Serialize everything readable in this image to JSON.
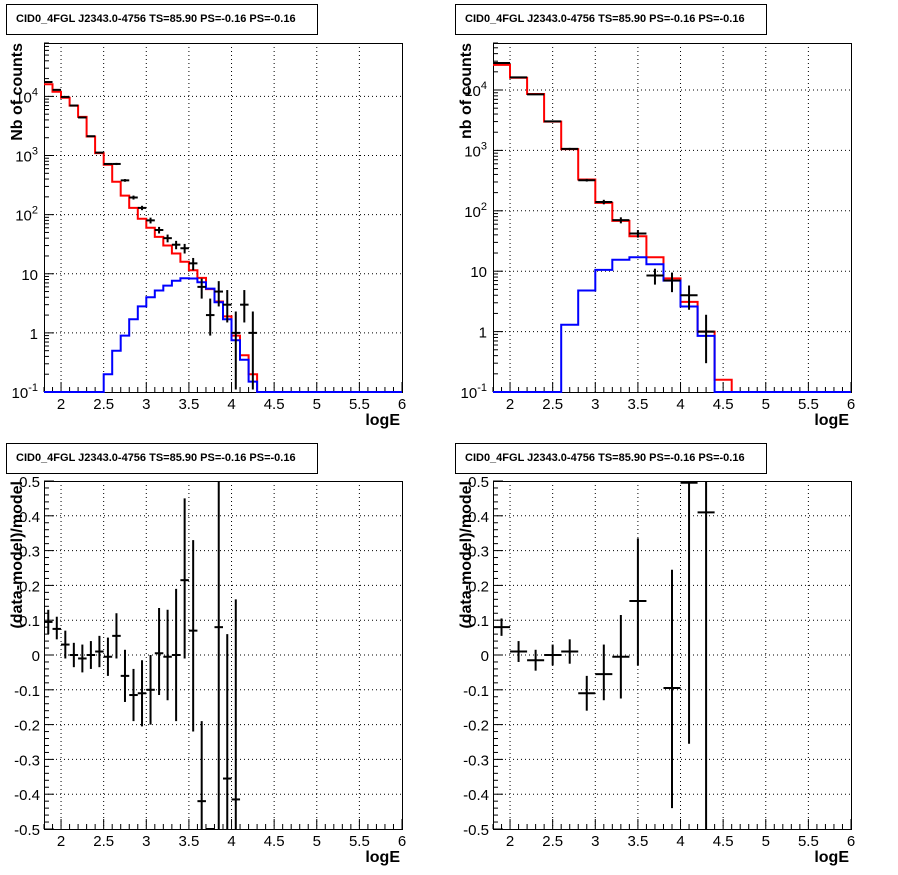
{
  "panels": [
    {
      "id": "top-left",
      "title": "CID0_4FGL J2343.0-4756 TS=85.90 PS=-0.16 PS=-0.16",
      "chart_data": {
        "type": "histogram",
        "xlabel": "logE",
        "ylabel": "Nb of counts",
        "xlim": [
          1.8,
          6.0
        ],
        "ylim": [
          0.1,
          80000
        ],
        "yscale": "log",
        "grid": true,
        "xticks": [
          "2",
          "2.5",
          "3",
          "3.5",
          "4",
          "4.5",
          "5",
          "5.5",
          "6"
        ],
        "yticks": [
          {
            "v": 0.1,
            "base": "10",
            "exp": "-1"
          },
          {
            "v": 1,
            "base": "1",
            "exp": ""
          },
          {
            "v": 10,
            "base": "10",
            "exp": ""
          },
          {
            "v": 100,
            "base": "10",
            "exp": "2"
          },
          {
            "v": 1000,
            "base": "10",
            "exp": "3"
          },
          {
            "v": 10000,
            "base": "10",
            "exp": "4"
          }
        ],
        "bin_edges": [
          1.8,
          1.9,
          2.0,
          2.1,
          2.2,
          2.3,
          2.4,
          2.5,
          2.6,
          2.7,
          2.8,
          2.9,
          3.0,
          3.1,
          3.2,
          3.3,
          3.4,
          3.5,
          3.6,
          3.7,
          3.8,
          3.9,
          4.0,
          4.1,
          4.2,
          4.3,
          4.4,
          4.5,
          4.6,
          4.7,
          4.8,
          4.9,
          5.0,
          5.1,
          5.2,
          5.3,
          5.4,
          5.5,
          5.6,
          5.7,
          5.8,
          5.9,
          6.0
        ],
        "series": [
          {
            "name": "",
            "color": "#ff0000",
            "style": "step",
            "values": [
              16000,
              12000,
              9500,
              7000,
              4500,
              2100,
              1100,
              700,
              360,
              210,
              130,
              85,
              60,
              42,
              30,
              22,
              16,
              11.5,
              8.5,
              5.5,
              3.4,
              1.9,
              0.9,
              0.42,
              0.2,
              0.1,
              0.1,
              0.1,
              0.1,
              0.1,
              0.1,
              0.1,
              0.1,
              0.1,
              0.1,
              0.1,
              0.1,
              0.1,
              0.1,
              0.1,
              0.1,
              0.1
            ]
          },
          {
            "name": "",
            "color": "#0000ff",
            "style": "step",
            "values": [
              0.1,
              0.1,
              0.1,
              0.1,
              0.1,
              0.1,
              0.1,
              0.2,
              0.5,
              0.9,
              1.7,
              2.8,
              4.0,
              5.2,
              6.3,
              7.6,
              8.4,
              8.3,
              7.2,
              5.6,
              3.3,
              1.7,
              0.75,
              0.35,
              0.15,
              0.1,
              0.1,
              0.1,
              0.1,
              0.1,
              0.1,
              0.1,
              0.1,
              0.1,
              0.1,
              0.1,
              0.1,
              0.1,
              0.1,
              0.1,
              0.1,
              0.1
            ]
          },
          {
            "name": "",
            "color": "#000000",
            "style": "points",
            "x": [
              1.85,
              1.95,
              2.05,
              2.15,
              2.25,
              2.35,
              2.45,
              2.55,
              2.65,
              2.75,
              2.85,
              2.95,
              3.05,
              3.15,
              3.25,
              3.35,
              3.45,
              3.55,
              3.65,
              3.75,
              3.85,
              3.95,
              4.05,
              4.15,
              4.25
            ],
            "y": [
              17500,
              12900,
              9800,
              7000,
              4400,
              2120,
              1120,
              720,
              720,
              380,
              195,
              130,
              80,
              55,
              40,
              31,
              27,
              15,
              6,
              2,
              5,
              3,
              1,
              3,
              1
            ],
            "lo": [
              17300,
              12750,
              9650,
              6900,
              4330,
              2070,
              1090,
              700,
              690,
              360,
              180,
              119,
              71,
              48,
              34,
              26,
              22,
              11.5,
              3.8,
              0.9,
              2.8,
              1.5,
              0.11,
              1.5,
              0.11
            ],
            "hi": [
              17750,
              13100,
              10000,
              7100,
              4470,
              2170,
              1150,
              740,
              750,
              400,
              210,
              141,
              89,
              62,
              46,
              36,
              32,
              18.5,
              8.3,
              3.8,
              7.5,
              5.3,
              2.3,
              5.3,
              2.3
            ]
          }
        ]
      }
    },
    {
      "id": "top-right",
      "title": "CID0_4FGL J2343.0-4756 TS=85.90 PS=-0.16 PS=-0.16",
      "chart_data": {
        "type": "histogram",
        "xlabel": "logE",
        "ylabel": "nb of counts",
        "xlim": [
          1.8,
          6.0
        ],
        "ylim": [
          0.1,
          60000
        ],
        "yscale": "log",
        "grid": true,
        "xticks": [
          "2",
          "2.5",
          "3",
          "3.5",
          "4",
          "4.5",
          "5",
          "5.5",
          "6"
        ],
        "yticks": [
          {
            "v": 0.1,
            "base": "10",
            "exp": "-1"
          },
          {
            "v": 1,
            "base": "1",
            "exp": ""
          },
          {
            "v": 10,
            "base": "10",
            "exp": ""
          },
          {
            "v": 100,
            "base": "10",
            "exp": "2"
          },
          {
            "v": 1000,
            "base": "10",
            "exp": "3"
          },
          {
            "v": 10000,
            "base": "10",
            "exp": "4"
          }
        ],
        "bin_edges": [
          1.8,
          2.0,
          2.2,
          2.4,
          2.6,
          2.8,
          3.0,
          3.2,
          3.4,
          3.6,
          3.8,
          4.0,
          4.2,
          4.4,
          4.6,
          4.8,
          5.0,
          5.2,
          5.4,
          5.6,
          5.8,
          6.0
        ],
        "series": [
          {
            "name": "",
            "color": "#ff0000",
            "style": "step",
            "values": [
              26000,
              16000,
              8600,
              3000,
              1050,
              330,
              135,
              68,
              38,
              17,
              7.6,
              3.1,
              1.0,
              0.16,
              0.1,
              0.1,
              0.1,
              0.1,
              0.1,
              0.1,
              0.1
            ]
          },
          {
            "name": "",
            "color": "#0000ff",
            "style": "step",
            "values": [
              0.1,
              0.1,
              0.1,
              0.1,
              1.3,
              4.8,
              10.5,
              15.5,
              17.0,
              13.0,
              7.0,
              2.6,
              0.85,
              0.1,
              0.1,
              0.1,
              0.1,
              0.1,
              0.1,
              0.1,
              0.1
            ]
          },
          {
            "name": "",
            "color": "#000000",
            "style": "points",
            "x": [
              1.9,
              2.1,
              2.3,
              2.5,
              2.7,
              2.9,
              3.1,
              3.3,
              3.5,
              3.7,
              3.9,
              4.1,
              4.3
            ],
            "y": [
              28000,
              16200,
              8450,
              3020,
              1060,
              320,
              140,
              70,
              42,
              8.5,
              7,
              4,
              1
            ],
            "lo": [
              27700,
              15900,
              8300,
              2950,
              1020,
              305,
              128,
              62,
              36,
              6,
              4.5,
              2.3,
              0.3
            ],
            "hi": [
              28300,
              16500,
              8600,
              3090,
              1100,
              337,
              152,
              78,
              48,
              11,
              9.5,
              5.8,
              1.9
            ]
          }
        ]
      }
    },
    {
      "id": "bottom-left",
      "title": "CID0_4FGL J2343.0-4756 TS=85.90 PS=-0.16 PS=-0.16",
      "chart_data": {
        "type": "scatter",
        "xlabel": "logE",
        "ylabel": "(data-model)/model",
        "xlim": [
          1.8,
          6.0
        ],
        "ylim": [
          -0.5,
          0.5
        ],
        "yscale": "linear",
        "grid": true,
        "xticks": [
          "2",
          "2.5",
          "3",
          "3.5",
          "4",
          "4.5",
          "5",
          "5.5",
          "6"
        ],
        "yticks_lin": [
          "-0.5",
          "-0.4",
          "-0.3",
          "-0.2",
          "-0.1",
          "0",
          "0.1",
          "0.2",
          "0.3",
          "0.4",
          "0.5"
        ],
        "series": [
          {
            "name": "",
            "color": "#000000",
            "style": "points",
            "xhalf": 0.05,
            "x": [
              1.85,
              1.95,
              2.05,
              2.15,
              2.25,
              2.35,
              2.45,
              2.55,
              2.65,
              2.75,
              2.85,
              2.95,
              3.05,
              3.15,
              3.25,
              3.35,
              3.45,
              3.55,
              3.65,
              3.75,
              3.85,
              3.95,
              4.05
            ],
            "y": [
              0.095,
              0.075,
              0.03,
              0.0,
              -0.01,
              0.0,
              0.01,
              -0.005,
              0.055,
              -0.06,
              -0.115,
              -0.11,
              -0.1,
              0.005,
              -0.005,
              0.0,
              0.215,
              0.07,
              -0.42,
              -0.5,
              0.08,
              -0.355,
              -0.415
            ],
            "lo": [
              0.06,
              0.045,
              -0.01,
              -0.035,
              -0.05,
              -0.04,
              -0.035,
              -0.06,
              -0.01,
              -0.135,
              -0.19,
              -0.205,
              -0.2,
              -0.115,
              -0.13,
              -0.19,
              -0.01,
              -0.22,
              -0.5,
              -0.5,
              -0.5,
              -0.5,
              -0.5
            ],
            "hi": [
              0.13,
              0.11,
              0.07,
              0.035,
              0.03,
              0.04,
              0.055,
              0.05,
              0.12,
              0.015,
              -0.04,
              -0.015,
              0.0,
              0.135,
              0.13,
              0.19,
              0.45,
              0.33,
              -0.19,
              -0.5,
              0.5,
              0.06,
              0.16
            ]
          }
        ]
      }
    },
    {
      "id": "bottom-right",
      "title": "CID0_4FGL J2343.0-4756 TS=85.90 PS=-0.16 PS=-0.16",
      "chart_data": {
        "type": "scatter",
        "xlabel": "logE",
        "ylabel": "(data-model)/model",
        "xlim": [
          1.8,
          6.0
        ],
        "ylim": [
          -0.5,
          0.5
        ],
        "yscale": "linear",
        "grid": true,
        "xticks": [
          "2",
          "2.5",
          "3",
          "3.5",
          "4",
          "4.5",
          "5",
          "5.5",
          "6"
        ],
        "yticks_lin": [
          "-0.5",
          "-0.4",
          "-0.3",
          "-0.2",
          "-0.1",
          "0",
          "0.1",
          "0.2",
          "0.3",
          "0.4",
          "0.5"
        ],
        "series": [
          {
            "name": "",
            "color": "#000000",
            "style": "points",
            "xhalf": 0.1,
            "x": [
              1.9,
              2.1,
              2.3,
              2.5,
              2.7,
              2.9,
              3.1,
              3.3,
              3.5,
              3.9,
              4.1,
              4.3
            ],
            "y": [
              0.08,
              0.01,
              -0.015,
              0.0,
              0.01,
              -0.11,
              -0.055,
              -0.005,
              0.155,
              -0.095,
              0.495,
              0.41
            ],
            "lo": [
              0.055,
              -0.02,
              -0.045,
              -0.03,
              -0.025,
              -0.16,
              -0.13,
              -0.125,
              -0.03,
              -0.44,
              -0.255,
              -0.5
            ],
            "hi": [
              0.105,
              0.04,
              0.015,
              0.03,
              0.045,
              -0.06,
              0.03,
              0.115,
              0.335,
              0.245,
              0.5,
              0.5
            ]
          }
        ]
      }
    }
  ]
}
